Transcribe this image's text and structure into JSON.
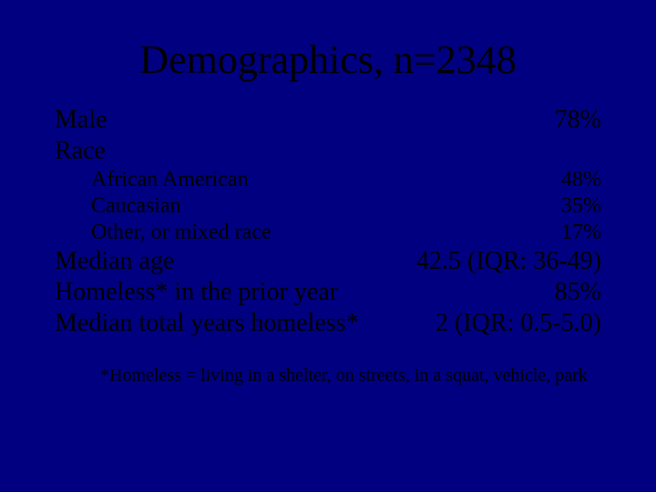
{
  "slide": {
    "background_color": "#000080",
    "text_color": "#000000",
    "title_fontsize": 44,
    "body_fontsize": 28,
    "sub_fontsize": 24,
    "footnote_fontsize": 20,
    "title": "Demographics, n=2348",
    "rows": {
      "male": {
        "label": "Male",
        "value": "78%"
      },
      "race": {
        "label": "Race",
        "value": ""
      },
      "aa": {
        "label": "African American",
        "value": "48%"
      },
      "cau": {
        "label": "Caucasian",
        "value": "35%"
      },
      "other": {
        "label": "Other, or mixed race",
        "value": "17%"
      },
      "medage": {
        "label": "Median age",
        "value": "42.5 (IQR: 36-49)"
      },
      "hprior": {
        "label": "Homeless* in the prior year",
        "value": "85%"
      },
      "medyrs": {
        "label": "Median total years homeless*",
        "value": "2  (IQR: 0.5-5.0)"
      }
    },
    "footnote": "*Homeless = living in a shelter, on streets, in a squat, vehicle, park"
  }
}
